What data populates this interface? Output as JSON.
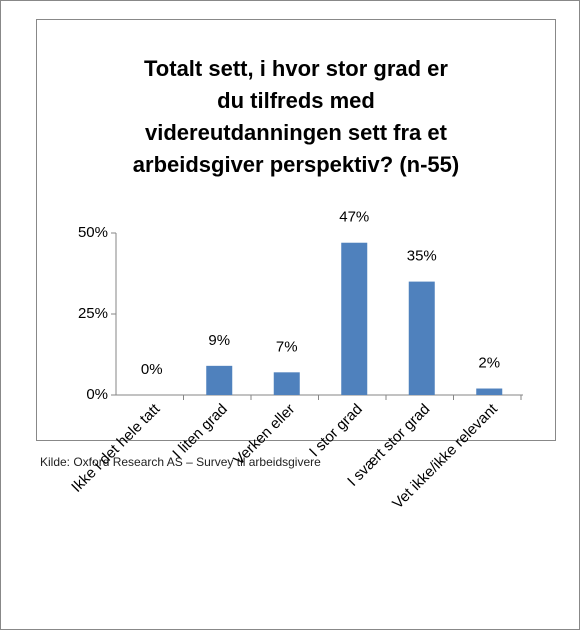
{
  "chart_data": {
    "type": "bar",
    "title": [
      "Totalt sett, i hvor stor grad er",
      "du tilfreds med",
      "videreutdanningen sett fra et",
      "arbeidsgiver perspektiv? (n-55)"
    ],
    "categories": [
      "Ikke i det hele tatt",
      "I liten grad",
      "Verken eller",
      "I stor grad",
      "I svært stor grad",
      "Vet ikke/ikke relevant"
    ],
    "values": [
      0,
      9,
      7,
      47,
      35,
      2
    ],
    "value_labels": [
      "0%",
      "9%",
      "7%",
      "47%",
      "35%",
      "2%"
    ],
    "color": "#4f81bd",
    "ylim": [
      0,
      50
    ],
    "yticks": [
      {
        "value": 0,
        "label": "0%"
      },
      {
        "value": 25,
        "label": "25%"
      },
      {
        "value": 50,
        "label": "50%"
      }
    ],
    "grid": false,
    "source": "Kilde: Oxford Research AS – Survey til arbeidsgivere"
  }
}
